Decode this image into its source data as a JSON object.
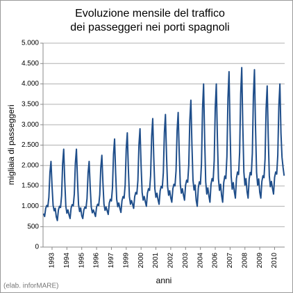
{
  "chart_data": {
    "type": "line",
    "title": "Evoluzione mensile del traffico",
    "subtitle": "dei passeggeri nei porti spagnoli",
    "y_label": "migliaia di passeggeri",
    "x_label": "anni",
    "source": "(elab. inforMARE)",
    "color": "#1f4e8a",
    "grid": true,
    "ylim": [
      0,
      5000
    ],
    "yticks": [
      0,
      500,
      {
        "value": 1000,
        "label": "1.000"
      },
      {
        "value": 1500,
        "label": "1.500"
      },
      {
        "value": 2000,
        "label": "2.000"
      },
      {
        "value": 2500,
        "label": "2.500"
      },
      {
        "value": 3000,
        "label": "3.000"
      },
      {
        "value": 3500,
        "label": "3.500"
      },
      {
        "value": 4000,
        "label": "4.000"
      },
      {
        "value": 4500,
        "label": "4.500"
      },
      {
        "value": 5000,
        "label": "5.000"
      }
    ],
    "categories": [
      null,
      null,
      null,
      null,
      null,
      null,
      null,
      null,
      "1993",
      null,
      null,
      null,
      null,
      null,
      null,
      null,
      null,
      null,
      null,
      null,
      null,
      null,
      "1994",
      null,
      null,
      null,
      null,
      null,
      null,
      null,
      null,
      null,
      null,
      null,
      null,
      null,
      "1995",
      null,
      null,
      null,
      null,
      null,
      null,
      null,
      null,
      null,
      null,
      null,
      null,
      null,
      "1996",
      null,
      null,
      null,
      null,
      null,
      null,
      null,
      null,
      null,
      null,
      null,
      null,
      null,
      "1997",
      null,
      null,
      null,
      null,
      null,
      null,
      null,
      null,
      null,
      null,
      null,
      null,
      null,
      "1999",
      null,
      null,
      null,
      null,
      null,
      null,
      null,
      null,
      null,
      null,
      null,
      null,
      null,
      "2000",
      null,
      null,
      null,
      null,
      null,
      null,
      null,
      null,
      null,
      null,
      null,
      null,
      null,
      "2001",
      null,
      null,
      null,
      null,
      null,
      null,
      null,
      null,
      null,
      null,
      null,
      null,
      null,
      "2002",
      null,
      null,
      null,
      null,
      null,
      null,
      null,
      null,
      null,
      null,
      null,
      null,
      null,
      "2003",
      null,
      null,
      null,
      null,
      null,
      null,
      null,
      null,
      null,
      null,
      null,
      null,
      null,
      "2004",
      null,
      null,
      null,
      null,
      null,
      null,
      null,
      null,
      null,
      null,
      null,
      null,
      null,
      "2006",
      null,
      null,
      null,
      null,
      null,
      null,
      null,
      null,
      null,
      null,
      null,
      null,
      null,
      "2007",
      null,
      null,
      null,
      null,
      null,
      null,
      null,
      null,
      null,
      null,
      null,
      null,
      null,
      "2008",
      null,
      null,
      null,
      null,
      null,
      null,
      null,
      null,
      null,
      null,
      null,
      null,
      null,
      "2009",
      null,
      null,
      null,
      null,
      null,
      null,
      null,
      null,
      null,
      null,
      null,
      null,
      null,
      "2010",
      null,
      null,
      null,
      null,
      null,
      null,
      null,
      null,
      null
    ],
    "values": [
      820,
      750,
      950,
      1020,
      990,
      1220,
      1830,
      2100,
      1490,
      1020,
      890,
      950,
      740,
      650,
      910,
      1000,
      970,
      1260,
      2050,
      2400,
      1610,
      1000,
      830,
      910,
      790,
      700,
      960,
      1040,
      1010,
      1300,
      2060,
      2400,
      1640,
      1040,
      870,
      960,
      770,
      700,
      910,
      980,
      950,
      1190,
      1820,
      2100,
      1470,
      980,
      840,
      910,
      830,
      750,
      980,
      1050,
      1020,
      1280,
      1950,
      2250,
      1580,
      1050,
      900,
      980,
      890,
      800,
      1080,
      1170,
      1130,
      1450,
      2280,
      2650,
      1820,
      1170,
      990,
      1080,
      950,
      850,
      1140,
      1240,
      1200,
      1530,
      2410,
      2800,
      1920,
      1240,
      1050,
      1140,
      1050,
      950,
      1240,
      1340,
      1300,
      1630,
      2510,
      2900,
      2020,
      1340,
      1150,
      1240,
      1110,
      1000,
      1320,
      1430,
      1390,
      1750,
      2720,
      3150,
      2180,
      1430,
      1220,
      1320,
      1160,
      1050,
      1380,
      1490,
      1450,
      1820,
      2810,
      3250,
      2260,
      1490,
      1270,
      1380,
      1210,
      1100,
      1430,
      1540,
      1500,
      1870,
      2860,
      3300,
      2310,
      1540,
      1320,
      1430,
      1270,
      1150,
      1520,
      1640,
      1590,
      2010,
      3110,
      3600,
      2500,
      1640,
      1400,
      1520,
      1150,
      1000,
      1450,
      1600,
      1540,
      2050,
      3400,
      4000,
      2650,
      1600,
      1300,
      1450,
      1250,
      1100,
      1540,
      1680,
      1620,
      2120,
      3420,
      4000,
      2700,
      1680,
      1390,
      1540,
      1260,
      1100,
      1580,
      1740,
      1680,
      2220,
      3660,
      4300,
      2860,
      1740,
      1420,
      1580,
      1360,
      1200,
      1680,
      1840,
      1780,
      2320,
      3760,
      4400,
      2960,
      1840,
      1520,
      1680,
      1360,
      1200,
      1670,
      1830,
      1770,
      2300,
      3720,
      4350,
      2930,
      1830,
      1520,
      1670,
      1340,
      1200,
      1610,
      1750,
      1700,
      2160,
      3400,
      3950,
      2710,
      1750,
      1480,
      1610,
      1440,
      1300,
      1710,
      1840,
      1790,
      2250,
      3460,
      4000,
      2790,
      2200,
      1950,
      1750
    ]
  }
}
